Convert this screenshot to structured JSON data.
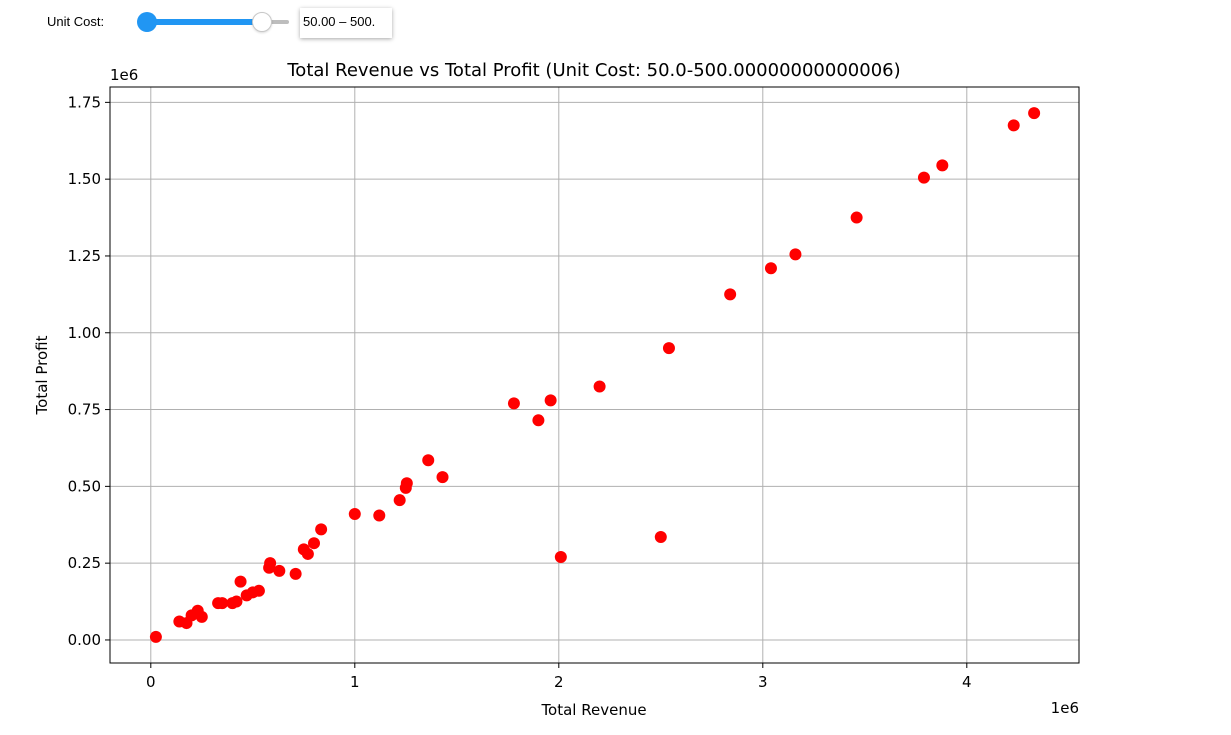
{
  "controls": {
    "unit_cost_label": "Unit Cost:",
    "slider_readout": "50.00 – 500.",
    "slider_low": 50.0,
    "slider_high": 500.0,
    "accent_color": "#2196f3"
  },
  "chart_data": {
    "type": "scatter",
    "title": "Total Revenue vs Total Profit (Unit Cost: 50.0-500.00000000000006)",
    "xlabel": "Total Revenue",
    "ylabel": "Total Profit",
    "x_offset_label": "1e6",
    "y_offset_label": "1e6",
    "xlim": [
      -0.2,
      4.55
    ],
    "ylim": [
      -0.075,
      1.8
    ],
    "xticks": [
      0,
      1,
      2,
      3,
      4
    ],
    "xtick_labels": [
      "0",
      "1",
      "2",
      "3",
      "4"
    ],
    "yticks": [
      0,
      0.25,
      0.5,
      0.75,
      1.0,
      1.25,
      1.5,
      1.75
    ],
    "ytick_labels": [
      "0.00",
      "0.25",
      "0.50",
      "0.75",
      "1.00",
      "1.25",
      "1.50",
      "1.75"
    ],
    "grid": true,
    "marker_color": "#ff0000",
    "points": [
      [
        0.025,
        0.01
      ],
      [
        0.14,
        0.06
      ],
      [
        0.175,
        0.055
      ],
      [
        0.2,
        0.08
      ],
      [
        0.23,
        0.095
      ],
      [
        0.25,
        0.075
      ],
      [
        0.33,
        0.12
      ],
      [
        0.35,
        0.12
      ],
      [
        0.4,
        0.12
      ],
      [
        0.42,
        0.125
      ],
      [
        0.44,
        0.19
      ],
      [
        0.47,
        0.145
      ],
      [
        0.5,
        0.155
      ],
      [
        0.53,
        0.16
      ],
      [
        0.58,
        0.235
      ],
      [
        0.585,
        0.25
      ],
      [
        0.63,
        0.225
      ],
      [
        0.71,
        0.215
      ],
      [
        0.75,
        0.295
      ],
      [
        0.77,
        0.28
      ],
      [
        0.8,
        0.315
      ],
      [
        0.835,
        0.36
      ],
      [
        1.0,
        0.41
      ],
      [
        1.12,
        0.405
      ],
      [
        1.22,
        0.455
      ],
      [
        1.25,
        0.495
      ],
      [
        1.255,
        0.51
      ],
      [
        1.36,
        0.585
      ],
      [
        1.43,
        0.53
      ],
      [
        1.78,
        0.77
      ],
      [
        1.9,
        0.715
      ],
      [
        1.96,
        0.78
      ],
      [
        2.01,
        0.27
      ],
      [
        2.2,
        0.825
      ],
      [
        2.5,
        0.335
      ],
      [
        2.54,
        0.95
      ],
      [
        2.84,
        1.125
      ],
      [
        3.04,
        1.21
      ],
      [
        3.16,
        1.255
      ],
      [
        3.46,
        1.375
      ],
      [
        3.79,
        1.505
      ],
      [
        3.88,
        1.545
      ],
      [
        4.23,
        1.675
      ],
      [
        4.33,
        1.715
      ]
    ]
  }
}
